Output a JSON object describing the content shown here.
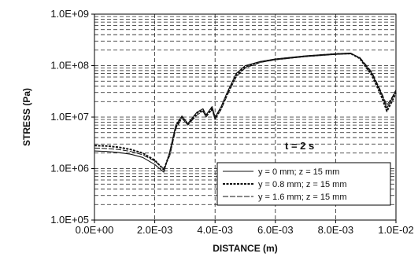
{
  "chart_data": {
    "type": "line",
    "xlabel": "DISTANCE (m)",
    "ylabel": "STRESS (Pa)",
    "xlim": [
      0,
      0.01
    ],
    "ylim": [
      100000,
      1000000000
    ],
    "yscale": "log",
    "x_ticks": [
      "0.0E+00",
      "2.0E-03",
      "4.0E-03",
      "6.0E-03",
      "8.0E-03",
      "1.0E-02"
    ],
    "x_tick_values": [
      0,
      0.002,
      0.004,
      0.006,
      0.008,
      0.01
    ],
    "y_ticks": [
      "1.0E+05",
      "1.0E+06",
      "1.0E+07",
      "1.0E+08",
      "1.0E+09"
    ],
    "y_tick_values": [
      100000,
      1000000,
      10000000,
      100000000,
      1000000000
    ],
    "grid": true,
    "legend_position": "lower-right",
    "annotation": "t = 2 s",
    "series": [
      {
        "name": "y = 0 mm; z = 15 mm",
        "style": "solid",
        "points": [
          [
            0,
            2200000
          ],
          [
            0.0004,
            2150000
          ],
          [
            0.0008,
            2050000
          ],
          [
            0.0012,
            1900000
          ],
          [
            0.0016,
            1650000
          ],
          [
            0.002,
            1200000
          ],
          [
            0.0023,
            850000
          ],
          [
            0.0025,
            2200000
          ],
          [
            0.0027,
            7000000
          ],
          [
            0.0029,
            10500000
          ],
          [
            0.0031,
            7500000
          ],
          [
            0.0032,
            9000000
          ],
          [
            0.0034,
            12500000
          ],
          [
            0.0036,
            14500000
          ],
          [
            0.0037,
            11000000
          ],
          [
            0.0039,
            16000000
          ],
          [
            0.004,
            10000000
          ],
          [
            0.0042,
            16000000
          ],
          [
            0.0044,
            30000000
          ],
          [
            0.0047,
            70000000
          ],
          [
            0.005,
            100000000
          ],
          [
            0.0055,
            120000000
          ],
          [
            0.006,
            135000000
          ],
          [
            0.007,
            155000000
          ],
          [
            0.008,
            170000000
          ],
          [
            0.0085,
            175000000
          ],
          [
            0.0088,
            140000000
          ],
          [
            0.0092,
            70000000
          ],
          [
            0.0095,
            30000000
          ],
          [
            0.0097,
            15000000
          ],
          [
            0.0099,
            25000000
          ],
          [
            0.01,
            32000000
          ]
        ]
      },
      {
        "name": "y = 0.8 mm; z = 15 mm",
        "style": "dashed",
        "points": [
          [
            0,
            2800000
          ],
          [
            0.0004,
            2750000
          ],
          [
            0.0008,
            2600000
          ],
          [
            0.0012,
            2350000
          ],
          [
            0.0016,
            2000000
          ],
          [
            0.002,
            1450000
          ],
          [
            0.0023,
            950000
          ],
          [
            0.0025,
            2000000
          ],
          [
            0.0027,
            6500000
          ],
          [
            0.0029,
            10000000
          ],
          [
            0.0031,
            7200000
          ],
          [
            0.0032,
            8500000
          ],
          [
            0.0034,
            12000000
          ],
          [
            0.0036,
            13500000
          ],
          [
            0.0037,
            10500000
          ],
          [
            0.0039,
            15000000
          ],
          [
            0.004,
            9500000
          ],
          [
            0.0042,
            15000000
          ],
          [
            0.0044,
            28000000
          ],
          [
            0.0047,
            65000000
          ],
          [
            0.005,
            95000000
          ],
          [
            0.0055,
            118000000
          ],
          [
            0.006,
            132000000
          ],
          [
            0.007,
            152000000
          ],
          [
            0.008,
            168000000
          ],
          [
            0.0085,
            172000000
          ],
          [
            0.0088,
            138000000
          ],
          [
            0.0092,
            65000000
          ],
          [
            0.0095,
            27000000
          ],
          [
            0.0097,
            13000000
          ],
          [
            0.0099,
            22000000
          ],
          [
            0.01,
            30000000
          ]
        ]
      },
      {
        "name": "y = 1.6 mm; z = 15 mm",
        "style": "long-dash",
        "points": [
          [
            0,
            2500000
          ],
          [
            0.0004,
            2450000
          ],
          [
            0.0008,
            2350000
          ],
          [
            0.0012,
            2150000
          ],
          [
            0.0016,
            1850000
          ],
          [
            0.002,
            1400000
          ],
          [
            0.0023,
            1000000
          ],
          [
            0.0025,
            1800000
          ],
          [
            0.0027,
            6000000
          ],
          [
            0.0029,
            9500000
          ],
          [
            0.0031,
            7000000
          ],
          [
            0.0032,
            8200000
          ],
          [
            0.0034,
            11000000
          ],
          [
            0.0036,
            13000000
          ],
          [
            0.0037,
            10000000
          ],
          [
            0.0039,
            14000000
          ],
          [
            0.004,
            9000000
          ],
          [
            0.0042,
            14000000
          ],
          [
            0.0044,
            26000000
          ],
          [
            0.0047,
            60000000
          ],
          [
            0.005,
            90000000
          ],
          [
            0.0055,
            115000000
          ],
          [
            0.006,
            130000000
          ],
          [
            0.007,
            150000000
          ],
          [
            0.008,
            165000000
          ],
          [
            0.0085,
            170000000
          ],
          [
            0.0088,
            145000000
          ],
          [
            0.0092,
            75000000
          ],
          [
            0.0095,
            32000000
          ],
          [
            0.0097,
            17000000
          ],
          [
            0.0099,
            26000000
          ],
          [
            0.01,
            34000000
          ]
        ]
      }
    ]
  }
}
